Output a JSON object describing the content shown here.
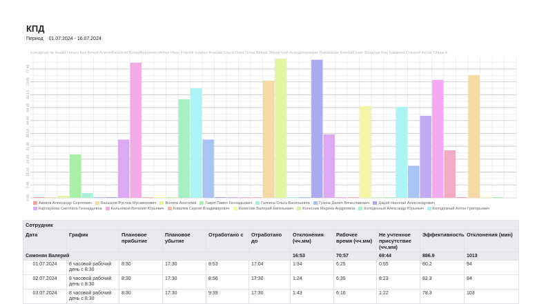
{
  "header": {
    "title": "КПД",
    "period_label": "Период",
    "period_value": "01.07.2024 - 16.07.2024"
  },
  "chart_data": {
    "type": "bar",
    "top_labels": "ксандртам № Анавл Генъга Бел Вечай АлегонВиталгей ВлериВерналексАнтон Иван Ктантиг енвйел Алисим Ольга Олия Олем Вйвам Эйвам Ірий Асандрторнерис Виковасим ВлексаЮрий: Владлав Бин Вавдими Станрей Актов Тйвам А",
    "ylabel": "",
    "yticks": [
      "0:00",
      "7:46",
      "15:33",
      "23:20",
      "31:06",
      "38:53",
      "46:40",
      "54:26",
      "62:13",
      "70:00",
      "77:46"
    ],
    "ylim_hours": [
      0,
      86
    ],
    "unit": "hours",
    "colors": [
      "#f4a0a8",
      "#f5d8a4",
      "#e2f5a2",
      "#a8f0a8",
      "#a8f0da",
      "#a8c4f4",
      "#aaaaf2",
      "#dcaaf2",
      "#f4aae6",
      "#f4baa8",
      "#f5f3a8",
      "#d2f2a8",
      "#a8f0c2",
      "#aaf4f4"
    ],
    "bars": [
      {
        "color": "#f4a0a8",
        "value": 0.3
      },
      {
        "color": "#f5d8a4",
        "value": 0.3
      },
      {
        "color": "#e2f5a2",
        "value": 1.2
      },
      {
        "color": "#a8f0a8",
        "value": 26.2
      },
      {
        "color": "#a8f0da",
        "value": 2.9
      },
      {
        "color": "#a8c4f4",
        "value": 0.3
      },
      {
        "color": "#aaaaf2",
        "value": 0.3
      },
      {
        "color": "#dcaaf2",
        "value": 35.2
      },
      {
        "color": "#f4aae6",
        "value": 81.5
      },
      {
        "color": "#f4baa8",
        "value": 0.3
      },
      {
        "color": "#f5f3a8",
        "value": 0.3
      },
      {
        "color": "#d2f2a8",
        "value": 0.3
      },
      {
        "color": "#a8f0c2",
        "value": 59.5
      },
      {
        "color": "#aaf4f4",
        "value": 66.2
      },
      {
        "color": "#a8c4f4",
        "value": 35.2
      },
      {
        "color": "#aaaaf2",
        "value": 0.3
      },
      {
        "color": "#dcaaf2",
        "value": 0.3
      },
      {
        "color": "#f4aae6",
        "value": 0.3
      },
      {
        "color": "#f4baa8",
        "value": 0.3
      },
      {
        "color": "#f5d8a4",
        "value": 70.7
      },
      {
        "color": "#e2f5a2",
        "value": 84.0
      },
      {
        "color": "#a8f0da",
        "value": 0.3
      },
      {
        "color": "#a8c4f4",
        "value": 0.3
      },
      {
        "color": "#aaaaf2",
        "value": 83.3
      },
      {
        "color": "#dcaaf2",
        "value": 38.3
      },
      {
        "color": "#f4aae6",
        "value": 0.3
      },
      {
        "color": "#f4baa8",
        "value": 0.3
      },
      {
        "color": "#f5f3a8",
        "value": 55.3
      },
      {
        "color": "#d2f2a8",
        "value": 0.3
      },
      {
        "color": "#a8f0c2",
        "value": 0.3
      },
      {
        "color": "#aaf4f4",
        "value": 54.9
      },
      {
        "color": "#a8c4f4",
        "value": 19.3
      },
      {
        "color": "#c4aaf2",
        "value": 49.5
      },
      {
        "color": "#f4aaf0",
        "value": 71.2
      },
      {
        "color": "#f4aac0",
        "value": 28.7
      },
      {
        "color": "#f4a0a8",
        "value": 0.3
      },
      {
        "color": "#f5d8a4",
        "value": 74.0
      },
      {
        "color": "#e2f5a2",
        "value": 0.3
      },
      {
        "color": "#a8f0a8",
        "value": 0.3
      },
      {
        "color": "#a8f0c2",
        "value": 0
      }
    ],
    "legend": [
      {
        "name": "Аваков Александр Сергеевич",
        "color": "#f4a0a8"
      },
      {
        "name": "Бахышов Рустем Мусаверович",
        "color": "#f5d8a4"
      },
      {
        "name": "Волков Анатолий",
        "color": "#e2f5a2"
      },
      {
        "name": "Гавря Павел Геннадьевич",
        "color": "#a8f0a8"
      },
      {
        "name": "Галкина Ольга Васильевна",
        "color": "#a8f0da"
      },
      {
        "name": "Гузеев Данил Вячеславович",
        "color": "#a8c4f4"
      },
      {
        "name": "Дацей Николай Александрович",
        "color": "#aaaaf2"
      },
      {
        "name": "Карнаухова Светлана Геннадьевна",
        "color": "#dcaaf2"
      },
      {
        "name": "Кильневой Виталий Юрьевич",
        "color": "#f4aae6"
      },
      {
        "name": "Ковалев Сергей Владимирович",
        "color": "#f4baa8"
      },
      {
        "name": "Колесник Валерий Евгеньевич",
        "color": "#f5f3a8"
      },
      {
        "name": "Колесник Марина Андреевна",
        "color": "#d2f2a8"
      },
      {
        "name": "Колодезный Александр Юрьевич",
        "color": "#a8f0c2"
      },
      {
        "name": "Колодезный Антон Григорьевич",
        "color": "#aaf4f4"
      }
    ]
  },
  "table": {
    "group_header": "Сотрудник",
    "columns": [
      "Дата",
      "График",
      "Плановое прибытие",
      "Плановое убытие",
      "Отработано с",
      "Отработано до",
      "Отклонения (чч.мм)",
      "Рабочее время (чч.мм)",
      "Не учтенное присутствие (чч.мм)",
      "Эффективность",
      "Отклонения (мин)"
    ],
    "employee": {
      "name": "Симонян Валерий",
      "totals": [
        "16:53",
        "70:57",
        "69:44",
        "886.9",
        "1013"
      ]
    },
    "rows": [
      [
        "01.07.2024",
        "8 часовой рабочий день с 8:30",
        "8:30",
        "17:30",
        "8:53",
        "17:04",
        "1:34",
        "6:25",
        "0:55",
        "80.2",
        "94"
      ],
      [
        "02.07.2024",
        "8 часовой рабочий день с 8:30",
        "8:30",
        "17:30",
        "8:56",
        "17:30",
        "1:24",
        "6:35",
        "8:23",
        "82.3",
        "84"
      ],
      [
        "03.07.2024",
        "8 часовой рабочий день с 8:30",
        "8:30",
        "17:30",
        "9:39",
        "17:30",
        "1:43",
        "6:16",
        "1:22",
        "78.3",
        "103"
      ]
    ]
  }
}
